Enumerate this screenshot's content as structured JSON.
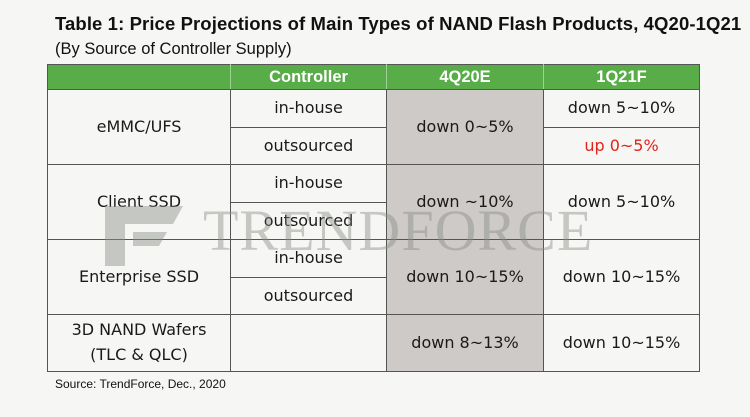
{
  "title": "Table 1: Price Projections of Main Types of NAND Flash Products, 4Q20-1Q21",
  "subtitle": "(By Source of Controller Supply)",
  "table": {
    "headers": [
      "",
      "Controller",
      "4Q20E",
      "1Q21F"
    ],
    "groups": [
      {
        "product": "eMMC/UFS",
        "rows": [
          {
            "controller": "in-house",
            "q1_21": "down 5~10%"
          },
          {
            "controller": "outsourced",
            "q1_21": "up 0~5%"
          }
        ],
        "q4_20": "down 0~5%"
      },
      {
        "product": "Client SSD",
        "rows": [
          {
            "controller": "in-house"
          },
          {
            "controller": "outsourced"
          }
        ],
        "q4_20": "down ~10%",
        "q1_21": "down 5~10%"
      },
      {
        "product": "Enterprise SSD",
        "rows": [
          {
            "controller": "in-house"
          },
          {
            "controller": "outsourced"
          }
        ],
        "q4_20": "down 10~15%",
        "q1_21": "down 10~15%"
      },
      {
        "product_line1": "3D NAND Wafers",
        "product_line2": "(TLC & QLC)",
        "controller": "",
        "q4_20": "down 8~13%",
        "q1_21": "down 10~15%"
      }
    ]
  },
  "colors": {
    "header_bg": "#58ad48",
    "q4_column_bg": "#cdcac8",
    "highlight_red": "#e2231a"
  },
  "watermark": {
    "text": "TRENDFORCE",
    "logo": "trendforce-logo"
  },
  "source": "Source: TrendForce, Dec., 2020"
}
